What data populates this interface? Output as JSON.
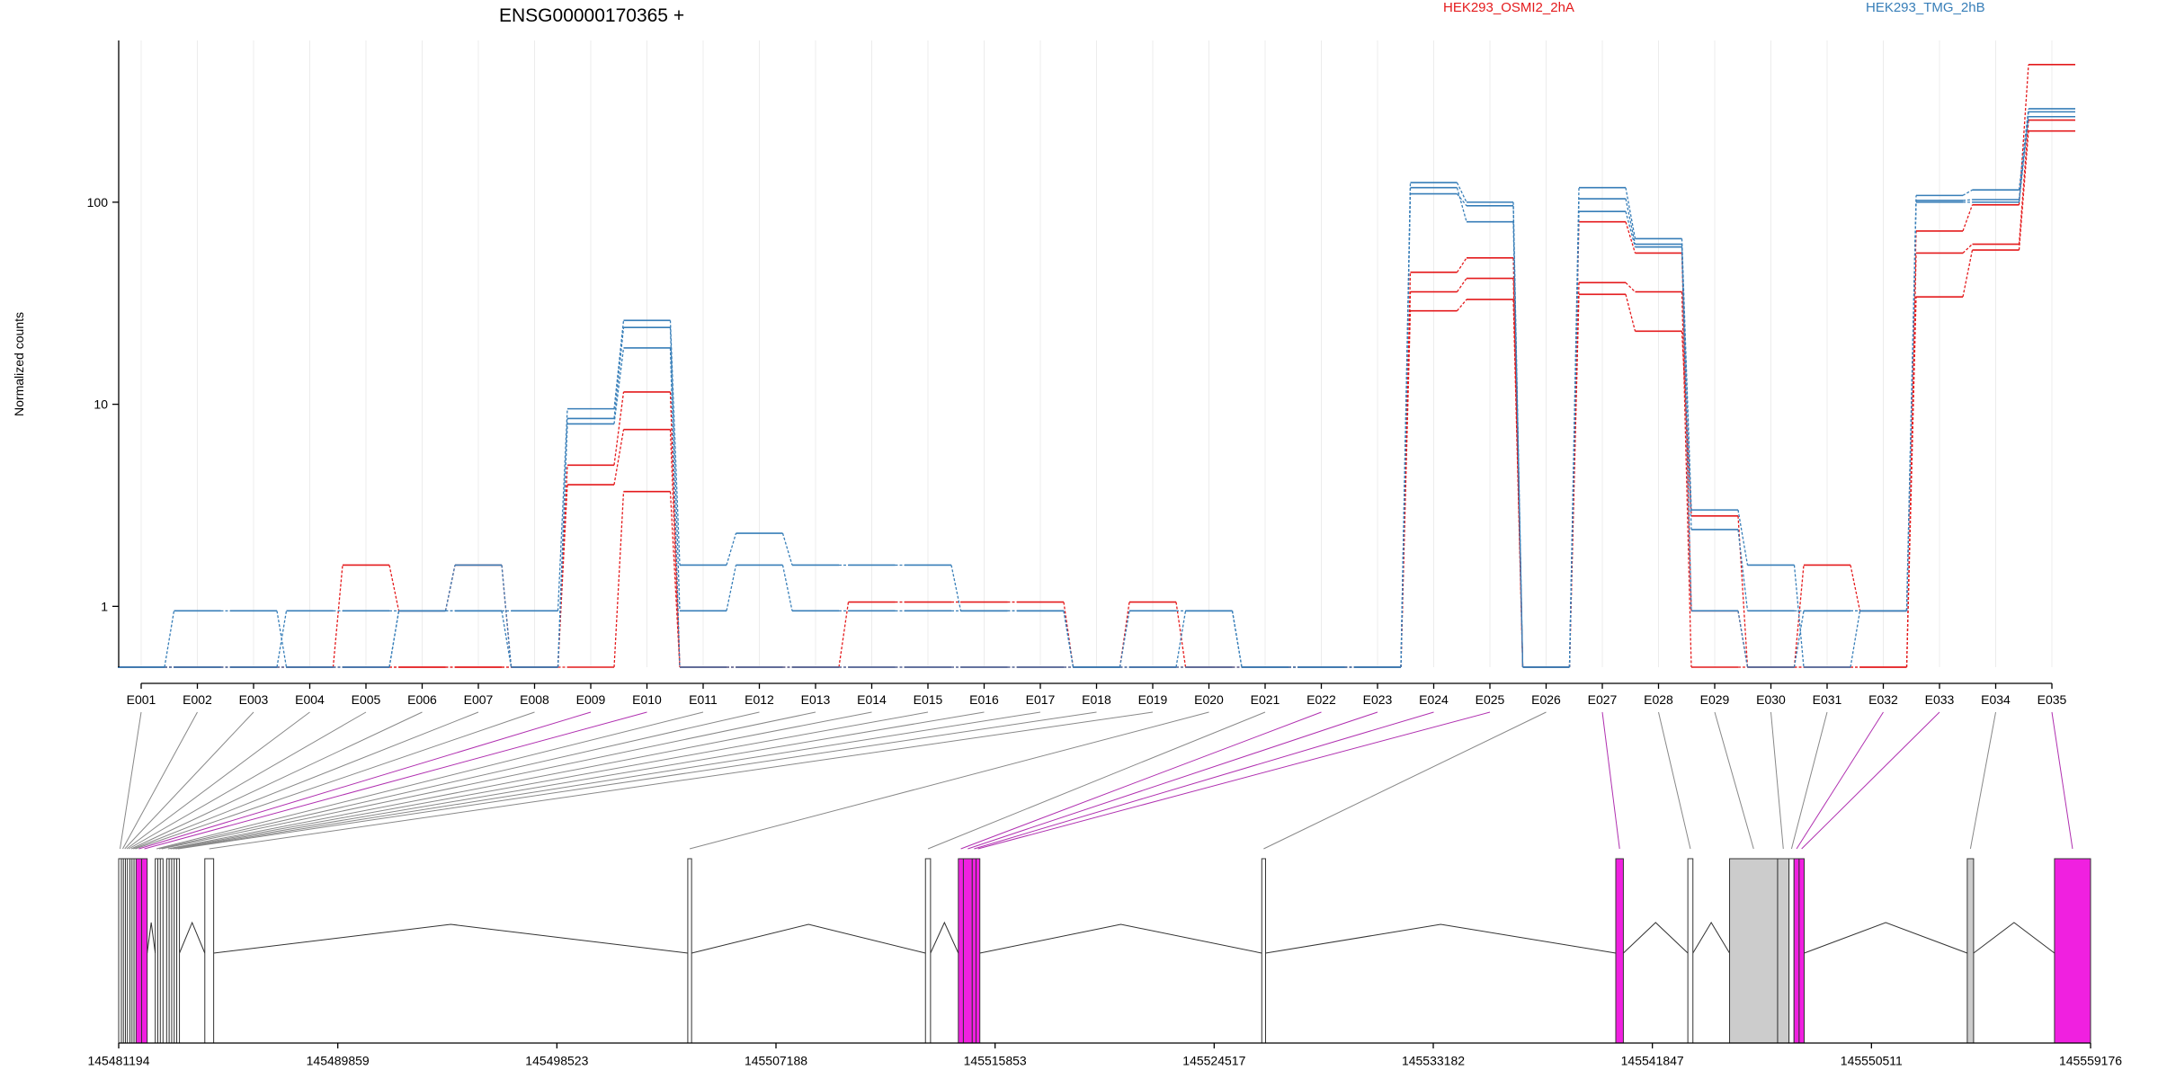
{
  "chart_data": {
    "type": "line",
    "title": "ENSG00000170365 +",
    "ylabel": "Normalized counts",
    "xlabel": "",
    "yscale": "log",
    "ylim": [
      0.5,
      600
    ],
    "yticks": [
      {
        "value": 1,
        "label": "1"
      },
      {
        "value": 10,
        "label": "10"
      },
      {
        "value": 100,
        "label": "100"
      }
    ],
    "grid": "vertical",
    "legend": {
      "placement": "top",
      "entries": [
        {
          "label": "HEK293_OSMI2_2hA",
          "color": "#e41a1c"
        },
        {
          "label": "HEK293_TMG_2hB",
          "color": "#377eb8"
        }
      ]
    },
    "categories": [
      "E001",
      "E002",
      "E003",
      "E004",
      "E005",
      "E006",
      "E007",
      "E008",
      "E009",
      "E010",
      "E011",
      "E012",
      "E013",
      "E014",
      "E015",
      "E016",
      "E017",
      "E018",
      "E019",
      "E020",
      "E021",
      "E022",
      "E023",
      "E024",
      "E025",
      "E026",
      "E027",
      "E028",
      "E029",
      "E030",
      "E031",
      "E032",
      "E033",
      "E034",
      "E035"
    ],
    "series": [
      {
        "group": "HEK293_OSMI2_2hA",
        "color": "#e41a1c",
        "values": [
          0.5,
          0.5,
          0.5,
          0.5,
          1.6,
          0.95,
          1.6,
          0.5,
          5,
          11.5,
          0.5,
          0.5,
          0.5,
          1.05,
          1.05,
          1.05,
          1.05,
          0.5,
          1.05,
          0.5,
          0.5,
          0.5,
          0.5,
          45,
          53,
          0.5,
          80,
          56,
          0.95,
          0.5,
          1.6,
          0.95,
          72,
          97,
          480
        ]
      },
      {
        "group": "HEK293_OSMI2_2hA",
        "color": "#e41a1c",
        "values": [
          0.5,
          0.5,
          0.5,
          0.5,
          0.5,
          0.5,
          0.5,
          0.5,
          4,
          7.5,
          0.5,
          0.5,
          0.5,
          0.5,
          0.5,
          0.5,
          0.5,
          0.5,
          0.5,
          0.5,
          0.5,
          0.5,
          0.5,
          36,
          42,
          0.5,
          40,
          36,
          0.5,
          0.5,
          0.5,
          0.5,
          56,
          62,
          255
        ]
      },
      {
        "group": "HEK293_OSMI2_2hA",
        "color": "#e41a1c",
        "values": [
          0.5,
          0.5,
          0.5,
          0.5,
          0.5,
          0.5,
          0.5,
          0.5,
          0.5,
          3.7,
          0.5,
          0.5,
          0.5,
          0.5,
          0.5,
          0.5,
          0.5,
          0.5,
          0.5,
          0.5,
          0.5,
          0.5,
          0.5,
          29,
          33,
          0.5,
          35,
          23,
          2.8,
          0.5,
          0.5,
          0.5,
          34,
          58,
          225
        ]
      },
      {
        "group": "HEK293_TMG_2hB",
        "color": "#377eb8",
        "values": [
          0.5,
          0.95,
          0.95,
          0.5,
          0.5,
          0.95,
          0.95,
          0.95,
          9.5,
          26,
          1.6,
          2.3,
          1.6,
          1.6,
          1.6,
          0.95,
          0.95,
          0.5,
          0.95,
          0.95,
          0.5,
          0.5,
          0.5,
          125,
          100,
          0.5,
          118,
          66,
          3,
          1.6,
          0.5,
          0.95,
          108,
          115,
          290
        ]
      },
      {
        "group": "HEK293_TMG_2hB",
        "color": "#377eb8",
        "values": [
          0.5,
          0.5,
          0.5,
          0.95,
          0.95,
          0.95,
          1.6,
          0.5,
          8.5,
          24,
          0.95,
          1.6,
          0.95,
          0.95,
          0.95,
          0.95,
          0.95,
          0.5,
          0.5,
          0.95,
          0.5,
          0.5,
          0.5,
          118,
          80,
          0.5,
          104,
          62,
          2.4,
          0.95,
          0.95,
          0.95,
          102,
          103,
          280
        ]
      },
      {
        "group": "HEK293_TMG_2hB",
        "color": "#377eb8",
        "values": [
          0.5,
          0.5,
          0.5,
          0.5,
          0.5,
          0.95,
          0.95,
          0.5,
          8,
          19,
          0.5,
          0.5,
          0.5,
          0.5,
          0.5,
          0.5,
          0.5,
          0.5,
          0.5,
          0.5,
          0.5,
          0.5,
          0.5,
          110,
          96,
          0.5,
          90,
          60,
          0.95,
          0.5,
          0.95,
          0.95,
          100,
          100,
          265
        ]
      }
    ],
    "genomic_axis": {
      "tick_labels": [
        "145481194",
        "145489859",
        "145498523",
        "145507188",
        "145515853",
        "145524517",
        "145533182",
        "145541847",
        "145550511",
        "145559176"
      ],
      "range": [
        145481194,
        145559176
      ]
    },
    "exons": [
      {
        "id": "E001",
        "start": 145481194,
        "end": 145481300,
        "highlight": false
      },
      {
        "id": "E002",
        "start": 145481300,
        "end": 145481380,
        "highlight": false
      },
      {
        "id": "E003",
        "start": 145481380,
        "end": 145481460,
        "highlight": false
      },
      {
        "id": "E004",
        "start": 145481460,
        "end": 145481540,
        "highlight": false
      },
      {
        "id": "E005",
        "start": 145481540,
        "end": 145481640,
        "highlight": false
      },
      {
        "id": "E006",
        "start": 145481640,
        "end": 145481720,
        "highlight": false
      },
      {
        "id": "E007",
        "start": 145481720,
        "end": 145481800,
        "highlight": false
      },
      {
        "id": "E008",
        "start": 145481800,
        "end": 145481880,
        "highlight": false
      },
      {
        "id": "E009",
        "start": 145481880,
        "end": 145482100,
        "highlight": true
      },
      {
        "id": "E010",
        "start": 145482100,
        "end": 145482320,
        "highlight": true
      },
      {
        "id": "E011",
        "start": 145482640,
        "end": 145482740,
        "highlight": false
      },
      {
        "id": "E012",
        "start": 145482740,
        "end": 145482840,
        "highlight": false
      },
      {
        "id": "E013",
        "start": 145482840,
        "end": 145482940,
        "highlight": false
      },
      {
        "id": "E014",
        "start": 145483090,
        "end": 145483190,
        "highlight": false
      },
      {
        "id": "E015",
        "start": 145483190,
        "end": 145483290,
        "highlight": false
      },
      {
        "id": "E016",
        "start": 145483290,
        "end": 145483390,
        "highlight": false
      },
      {
        "id": "E017",
        "start": 145483390,
        "end": 145483490,
        "highlight": false
      },
      {
        "id": "E018",
        "start": 145483490,
        "end": 145483590,
        "highlight": false
      },
      {
        "id": "E019",
        "start": 145484600,
        "end": 145484950,
        "highlight": false
      },
      {
        "id": "E020",
        "start": 145503700,
        "end": 145503850,
        "highlight": false
      },
      {
        "id": "E021",
        "start": 145513100,
        "end": 145513300,
        "highlight": false
      },
      {
        "id": "E022",
        "start": 145514400,
        "end": 145514600,
        "highlight": true
      },
      {
        "id": "E023",
        "start": 145514600,
        "end": 145514950,
        "highlight": true
      },
      {
        "id": "E024",
        "start": 145514950,
        "end": 145515100,
        "highlight": true
      },
      {
        "id": "E025",
        "start": 145515100,
        "end": 145515250,
        "highlight": true
      },
      {
        "id": "E026",
        "start": 145526400,
        "end": 145526550,
        "highlight": false
      },
      {
        "id": "E027",
        "start": 145540400,
        "end": 145540700,
        "highlight": true
      },
      {
        "id": "E028",
        "start": 145543250,
        "end": 145543450,
        "highlight": false
      },
      {
        "id": "E029",
        "start": 145544900,
        "end": 145546800,
        "highlight": false,
        "shaded": true
      },
      {
        "id": "E030",
        "start": 145546800,
        "end": 145547250,
        "highlight": false,
        "shaded": true
      },
      {
        "id": "E031",
        "start": 145547250,
        "end": 145547450,
        "highlight": false
      },
      {
        "id": "E032",
        "start": 145547450,
        "end": 145547650,
        "highlight": true
      },
      {
        "id": "E033",
        "start": 145547650,
        "end": 145547850,
        "highlight": true
      },
      {
        "id": "E034",
        "start": 145554300,
        "end": 145554550,
        "highlight": false,
        "shaded": true
      },
      {
        "id": "E035",
        "start": 145557750,
        "end": 145559176,
        "highlight": true
      }
    ]
  }
}
